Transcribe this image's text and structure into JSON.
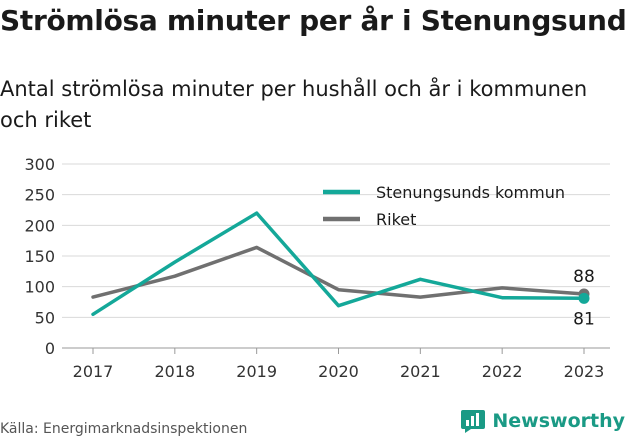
{
  "header": {
    "title": "Strömlösa minuter per år i Stenungsund",
    "subtitle": "Antal strömlösa minuter per hushåll och år i kommunen och riket"
  },
  "footer": {
    "source": "Källa: Energimarknadsinspektionen",
    "brand": "Newsworthy",
    "brand_icon": "newsworthy-logo-icon"
  },
  "colors": {
    "kommun": "#14a899",
    "riket": "#707070",
    "grid": "#d9d9d9",
    "brand": "#1a9a85"
  },
  "chart_data": {
    "type": "line",
    "title": "Strömlösa minuter per år i Stenungsund",
    "subtitle": "Antal strömlösa minuter per hushåll och år i kommunen och riket",
    "xlabel": "",
    "ylabel": "",
    "x": [
      "2017",
      "2018",
      "2019",
      "2020",
      "2021",
      "2022",
      "2023"
    ],
    "ylim": [
      0,
      300
    ],
    "yticks": [
      0,
      50,
      100,
      150,
      200,
      250,
      300
    ],
    "grid": true,
    "legend": "top-right",
    "series": [
      {
        "name": "Stenungsunds kommun",
        "key": "kommun",
        "values": [
          55,
          140,
          220,
          69,
          112,
          82,
          81
        ],
        "end_label": "81",
        "end_label_position": "below"
      },
      {
        "name": "Riket",
        "key": "riket",
        "values": [
          83,
          117,
          164,
          95,
          83,
          98,
          88
        ],
        "end_label": "88",
        "end_label_position": "above"
      }
    ]
  }
}
